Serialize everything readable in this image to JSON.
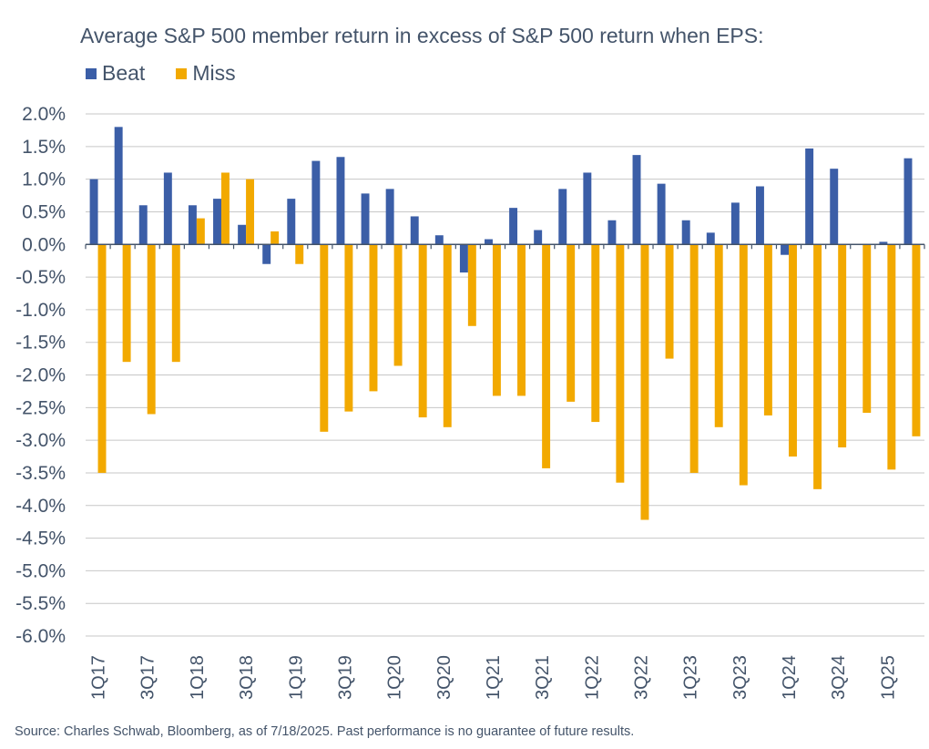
{
  "title": "Average S&P 500 member return in excess of S&P 500 return when EPS:",
  "source": "Source: Charles Schwab, Bloomberg, as of 7/18/2025. Past performance is no guarantee of future results.",
  "colors": {
    "beat": "#3b5ea7",
    "miss": "#f2a900",
    "grid": "#c7c7c7",
    "axis": "#44546a"
  },
  "chart_data": {
    "type": "bar",
    "title": "Average S&P 500 member return in excess of S&P 500 return when EPS:",
    "xlabel": "",
    "ylabel": "",
    "ylim": [
      -6.0,
      2.0
    ],
    "y_unit": "%",
    "grid": true,
    "legend_position": "top-left",
    "y_ticks": [
      "2.0%",
      "1.5%",
      "1.0%",
      "0.5%",
      "0.0%",
      "-0.5%",
      "-1.0%",
      "-1.5%",
      "-2.0%",
      "-2.5%",
      "-3.0%",
      "-3.5%",
      "-4.0%",
      "-4.5%",
      "-5.0%",
      "-5.5%",
      "-6.0%"
    ],
    "y_tick_values": [
      2.0,
      1.5,
      1.0,
      0.5,
      0.0,
      -0.5,
      -1.0,
      -1.5,
      -2.0,
      -2.5,
      -3.0,
      -3.5,
      -4.0,
      -4.5,
      -5.0,
      -5.5,
      -6.0
    ],
    "categories": [
      "1Q17",
      "2Q17",
      "3Q17",
      "4Q17",
      "1Q18",
      "2Q18",
      "3Q18",
      "4Q18",
      "1Q19",
      "2Q19",
      "3Q19",
      "4Q19",
      "1Q20",
      "2Q20",
      "3Q20",
      "4Q20",
      "1Q21",
      "2Q21",
      "3Q21",
      "4Q21",
      "1Q22",
      "2Q22",
      "3Q22",
      "4Q22",
      "1Q23",
      "2Q23",
      "3Q23",
      "4Q23",
      "1Q24",
      "2Q24",
      "3Q24",
      "4Q24",
      "1Q25",
      "2Q25"
    ],
    "x_tick_labels": [
      "1Q17",
      "3Q17",
      "1Q18",
      "3Q18",
      "1Q19",
      "3Q19",
      "1Q20",
      "3Q20",
      "1Q21",
      "3Q21",
      "1Q22",
      "3Q22",
      "1Q23",
      "3Q23",
      "1Q24",
      "3Q24",
      "1Q25"
    ],
    "series": [
      {
        "name": "Beat",
        "color": "#3b5ea7",
        "values": [
          1.0,
          1.8,
          0.6,
          1.1,
          0.6,
          0.7,
          0.3,
          -0.3,
          0.7,
          1.28,
          1.34,
          0.78,
          0.85,
          0.43,
          0.14,
          -0.43,
          0.08,
          0.56,
          0.22,
          0.85,
          1.1,
          0.37,
          1.37,
          0.93,
          0.37,
          0.18,
          0.64,
          0.89,
          -0.16,
          1.47,
          1.16,
          0.0,
          0.04,
          1.32
        ]
      },
      {
        "name": "Miss",
        "color": "#f2a900",
        "values": [
          -3.5,
          -1.8,
          -2.6,
          -1.8,
          0.4,
          1.1,
          1.0,
          0.2,
          -0.3,
          -2.87,
          -2.56,
          -2.25,
          -1.86,
          -2.65,
          -2.8,
          -1.25,
          -2.32,
          -2.32,
          -3.43,
          -2.41,
          -2.72,
          -3.65,
          -4.22,
          -1.75,
          -3.5,
          -2.8,
          -3.69,
          -2.62,
          -3.25,
          -3.75,
          -3.11,
          -2.58,
          -3.45,
          -2.94
        ]
      }
    ]
  }
}
